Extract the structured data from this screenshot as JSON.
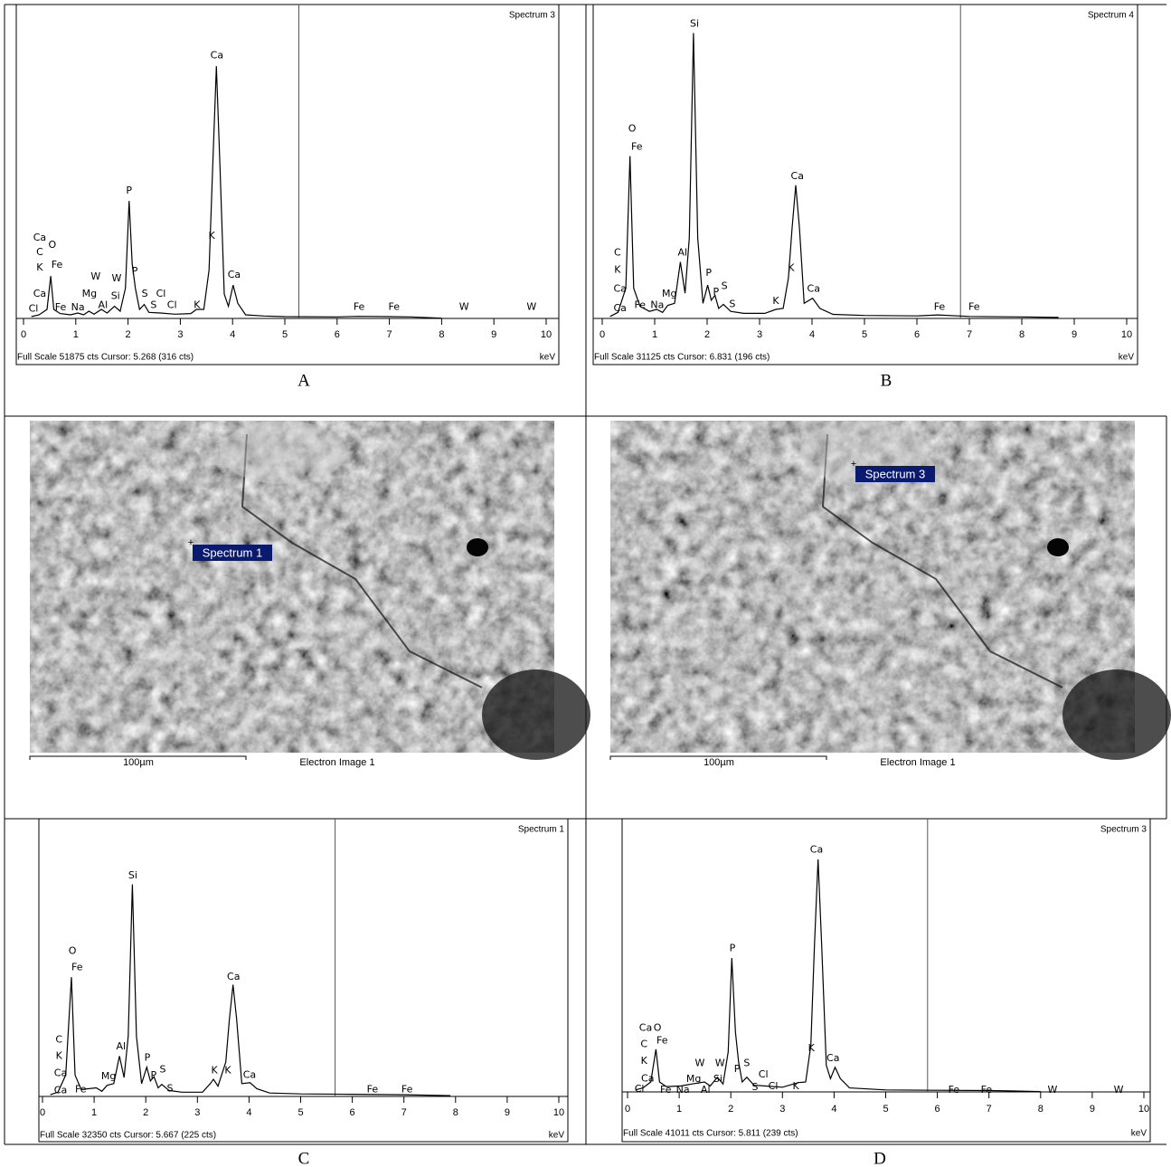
{
  "chart_data": [
    {
      "type": "line",
      "title": "Spectrum 3",
      "caption": "A",
      "x_label": "keV",
      "footer": "Full Scale 51875 cts Cursor: 5.268 (316 cts)",
      "cursor": 5.268,
      "color": "#000000",
      "xlim": [
        0,
        10
      ],
      "xticks": [
        0,
        1,
        2,
        3,
        4,
        5,
        6,
        7,
        8,
        9,
        10
      ],
      "ylim": [
        0,
        51875
      ],
      "x": [
        0.15,
        0.3,
        0.45,
        0.52,
        0.58,
        0.7,
        0.9,
        1.04,
        1.15,
        1.25,
        1.35,
        1.49,
        1.6,
        1.74,
        1.85,
        1.95,
        2.02,
        2.08,
        2.14,
        2.22,
        2.31,
        2.4,
        2.62,
        2.9,
        3.2,
        3.31,
        3.45,
        3.55,
        3.62,
        3.69,
        3.76,
        3.84,
        3.92,
        4.01,
        4.1,
        4.25,
        4.6,
        5,
        6,
        6.4,
        7,
        7.4,
        8
      ],
      "values": [
        300,
        600,
        1500,
        7000,
        1500,
        800,
        600,
        900,
        600,
        1200,
        700,
        1500,
        900,
        2000,
        1200,
        5000,
        19400,
        9000,
        5000,
        1500,
        2300,
        1000,
        900,
        700,
        800,
        1500,
        1500,
        8000,
        25000,
        41700,
        25000,
        4000,
        2000,
        5500,
        2500,
        600,
        400,
        300,
        250,
        350,
        300,
        250,
        50
      ],
      "annotations": [
        {
          "text": "Ca",
          "x": 0.31,
          "y": 13300
        },
        {
          "text": "C",
          "x": 0.31,
          "y": 10900
        },
        {
          "text": "K",
          "x": 0.31,
          "y": 8400
        },
        {
          "text": "Ca",
          "x": 0.31,
          "y": 4000
        },
        {
          "text": "Cl",
          "x": 0.19,
          "y": 1600
        },
        {
          "text": "O",
          "x": 0.55,
          "y": 12100
        },
        {
          "text": "Fe",
          "x": 0.64,
          "y": 8800
        },
        {
          "text": "Fe",
          "x": 0.71,
          "y": 1800
        },
        {
          "text": "Na",
          "x": 1.04,
          "y": 1800
        },
        {
          "text": "Mg",
          "x": 1.26,
          "y": 4000
        },
        {
          "text": "W",
          "x": 1.38,
          "y": 6900
        },
        {
          "text": "Al",
          "x": 1.52,
          "y": 2200
        },
        {
          "text": "Si",
          "x": 1.76,
          "y": 3700
        },
        {
          "text": "W",
          "x": 1.78,
          "y": 6600
        },
        {
          "text": "P",
          "x": 2.02,
          "y": 21100
        },
        {
          "text": "P",
          "x": 2.13,
          "y": 7800
        },
        {
          "text": "S",
          "x": 2.32,
          "y": 4000
        },
        {
          "text": "S",
          "x": 2.49,
          "y": 2200
        },
        {
          "text": "Cl",
          "x": 2.63,
          "y": 4000
        },
        {
          "text": "Cl",
          "x": 2.84,
          "y": 2200
        },
        {
          "text": "K",
          "x": 3.32,
          "y": 2200
        },
        {
          "text": "K",
          "x": 3.6,
          "y": 13600
        },
        {
          "text": "Ca",
          "x": 3.7,
          "y": 43400
        },
        {
          "text": "Ca",
          "x": 4.03,
          "y": 7200
        },
        {
          "text": "Fe",
          "x": 6.42,
          "y": 1900
        },
        {
          "text": "Fe",
          "x": 7.09,
          "y": 1900
        },
        {
          "text": "W",
          "x": 8.43,
          "y": 1900
        },
        {
          "text": "W",
          "x": 9.72,
          "y": 1900
        }
      ]
    },
    {
      "type": "line",
      "title": "Spectrum 4",
      "caption": "B",
      "x_label": "keV",
      "footer": "Full Scale 31125 cts Cursor: 6.831 (196 cts)",
      "cursor": 6.831,
      "color": "#000000",
      "xlim": [
        0,
        10
      ],
      "xticks": [
        0,
        1,
        2,
        3,
        4,
        5,
        6,
        7,
        8,
        9,
        10
      ],
      "ylim": [
        0,
        31125
      ],
      "x": [
        0.15,
        0.3,
        0.45,
        0.53,
        0.6,
        0.72,
        0.9,
        1.04,
        1.15,
        1.25,
        1.38,
        1.49,
        1.58,
        1.66,
        1.74,
        1.82,
        1.92,
        2.01,
        2.08,
        2.15,
        2.22,
        2.31,
        2.45,
        2.7,
        3.1,
        3.31,
        3.45,
        3.55,
        3.62,
        3.69,
        3.76,
        3.85,
        4.01,
        4.15,
        4.4,
        5,
        6,
        6.4,
        7,
        8,
        8.7
      ],
      "values": [
        200,
        600,
        3000,
        16100,
        3000,
        1200,
        700,
        900,
        600,
        1300,
        1500,
        5600,
        2500,
        8000,
        28300,
        8000,
        1500,
        3300,
        1800,
        2300,
        1000,
        1400,
        700,
        500,
        500,
        900,
        1000,
        4000,
        9000,
        13200,
        9000,
        1500,
        2000,
        1000,
        400,
        300,
        250,
        350,
        200,
        150,
        100
      ],
      "annotations": [
        {
          "text": "Si",
          "x": 1.76,
          "y": 29200
        },
        {
          "text": "O",
          "x": 0.57,
          "y": 18800
        },
        {
          "text": "Fe",
          "x": 0.66,
          "y": 17000
        },
        {
          "text": "C",
          "x": 0.29,
          "y": 6500
        },
        {
          "text": "K",
          "x": 0.29,
          "y": 4800
        },
        {
          "text": "Ca",
          "x": 0.34,
          "y": 2900
        },
        {
          "text": "Ca",
          "x": 0.34,
          "y": 1000
        },
        {
          "text": "Fe",
          "x": 0.72,
          "y": 1300
        },
        {
          "text": "Na",
          "x": 1.05,
          "y": 1300
        },
        {
          "text": "Mg",
          "x": 1.28,
          "y": 2400
        },
        {
          "text": "Al",
          "x": 1.53,
          "y": 6500
        },
        {
          "text": "P",
          "x": 2.03,
          "y": 4500
        },
        {
          "text": "S",
          "x": 2.33,
          "y": 3200
        },
        {
          "text": "P",
          "x": 2.17,
          "y": 2600
        },
        {
          "text": "S",
          "x": 2.48,
          "y": 1400
        },
        {
          "text": "K",
          "x": 3.31,
          "y": 1700
        },
        {
          "text": "K",
          "x": 3.6,
          "y": 5000
        },
        {
          "text": "Ca",
          "x": 3.72,
          "y": 14100
        },
        {
          "text": "Ca",
          "x": 4.03,
          "y": 2900
        },
        {
          "text": "Fe",
          "x": 6.43,
          "y": 1100
        },
        {
          "text": "Fe",
          "x": 7.09,
          "y": 1100
        }
      ]
    },
    {
      "type": "line",
      "title": "Spectrum 1",
      "caption": "C",
      "x_label": "keV",
      "footer": "Full Scale 32350 cts Cursor: 5.667 (225 cts)",
      "cursor": 5.667,
      "color": "#000000",
      "xlim": [
        0,
        10
      ],
      "xticks": [
        0,
        1,
        2,
        3,
        4,
        5,
        6,
        7,
        8,
        9,
        10
      ],
      "ylim": [
        0,
        32350
      ],
      "x": [
        0.15,
        0.3,
        0.45,
        0.56,
        0.63,
        0.75,
        1.04,
        1.15,
        1.25,
        1.38,
        1.49,
        1.58,
        1.66,
        1.74,
        1.82,
        1.92,
        2.02,
        2.09,
        2.16,
        2.24,
        2.31,
        2.45,
        2.7,
        3.1,
        3.25,
        3.31,
        3.4,
        3.55,
        3.62,
        3.69,
        3.76,
        3.86,
        4.02,
        4.15,
        4.4,
        5,
        6,
        7,
        7.9
      ],
      "values": [
        200,
        500,
        2500,
        13900,
        2500,
        800,
        1000,
        600,
        1300,
        1500,
        4700,
        2200,
        7000,
        24700,
        7000,
        1500,
        3400,
        1800,
        2300,
        1000,
        1400,
        700,
        500,
        500,
        1500,
        2000,
        1200,
        4000,
        9000,
        13000,
        9000,
        1500,
        1600,
        900,
        400,
        300,
        250,
        200,
        100
      ],
      "annotations": [
        {
          "text": "Si",
          "x": 1.75,
          "y": 25700
        },
        {
          "text": "O",
          "x": 0.58,
          "y": 16900
        },
        {
          "text": "Fe",
          "x": 0.67,
          "y": 15000
        },
        {
          "text": "C",
          "x": 0.32,
          "y": 6600
        },
        {
          "text": "K",
          "x": 0.32,
          "y": 4700
        },
        {
          "text": "Ca",
          "x": 0.35,
          "y": 2700
        },
        {
          "text": "Ca",
          "x": 0.35,
          "y": 700
        },
        {
          "text": "Fe",
          "x": 0.74,
          "y": 800
        },
        {
          "text": "Mg",
          "x": 1.28,
          "y": 2300
        },
        {
          "text": "Al",
          "x": 1.52,
          "y": 5800
        },
        {
          "text": "P",
          "x": 2.03,
          "y": 4500
        },
        {
          "text": "S",
          "x": 2.33,
          "y": 3100
        },
        {
          "text": "P",
          "x": 2.15,
          "y": 2400
        },
        {
          "text": "S",
          "x": 2.47,
          "y": 900
        },
        {
          "text": "K",
          "x": 3.33,
          "y": 3000
        },
        {
          "text": "K",
          "x": 3.59,
          "y": 3000
        },
        {
          "text": "Ca",
          "x": 3.7,
          "y": 13900
        },
        {
          "text": "Ca",
          "x": 4.01,
          "y": 2500
        },
        {
          "text": "Fe",
          "x": 6.39,
          "y": 800
        },
        {
          "text": "Fe",
          "x": 7.06,
          "y": 800
        }
      ]
    },
    {
      "type": "line",
      "title": "Spectrum 3",
      "caption": "D",
      "x_label": "keV",
      "footer": "Full Scale 41011 cts Cursor: 5.811 (239 cts)",
      "cursor": 5.811,
      "color": "#000000",
      "xlim": [
        0,
        10
      ],
      "xticks": [
        0,
        1,
        2,
        3,
        4,
        5,
        6,
        7,
        8,
        9,
        10
      ],
      "ylim": [
        0,
        41011
      ],
      "x": [
        0.15,
        0.3,
        0.45,
        0.55,
        0.62,
        0.75,
        1.04,
        1.25,
        1.49,
        1.6,
        1.74,
        1.85,
        1.95,
        2.02,
        2.09,
        2.15,
        2.22,
        2.31,
        2.45,
        2.65,
        3.0,
        3.31,
        3.45,
        3.55,
        3.62,
        3.69,
        3.76,
        3.85,
        3.93,
        4.02,
        4.12,
        4.3,
        5,
        6,
        7,
        7.4,
        8
      ],
      "values": [
        300,
        600,
        1500,
        6400,
        1500,
        800,
        900,
        1200,
        1500,
        900,
        2200,
        1200,
        6000,
        20100,
        9000,
        4500,
        1500,
        2200,
        1000,
        900,
        700,
        1400,
        1500,
        7000,
        22000,
        34900,
        22000,
        4000,
        2000,
        3700,
        2000,
        600,
        300,
        250,
        200,
        150,
        50
      ],
      "annotations": [
        {
          "text": "Ca",
          "x": 3.66,
          "y": 36300
        },
        {
          "text": "P",
          "x": 2.03,
          "y": 21500
        },
        {
          "text": "Ca",
          "x": 0.35,
          "y": 9600
        },
        {
          "text": "O",
          "x": 0.58,
          "y": 9600
        },
        {
          "text": "C",
          "x": 0.32,
          "y": 7100
        },
        {
          "text": "K",
          "x": 0.32,
          "y": 4600
        },
        {
          "text": "Fe",
          "x": 0.67,
          "y": 7700
        },
        {
          "text": "Ca",
          "x": 0.39,
          "y": 2000
        },
        {
          "text": "Cl",
          "x": 0.23,
          "y": 400
        },
        {
          "text": "Fe",
          "x": 0.74,
          "y": 300
        },
        {
          "text": "Na",
          "x": 1.07,
          "y": 300
        },
        {
          "text": "Mg",
          "x": 1.28,
          "y": 1900
        },
        {
          "text": "W",
          "x": 1.4,
          "y": 4300
        },
        {
          "text": "Al",
          "x": 1.51,
          "y": 300
        },
        {
          "text": "Si",
          "x": 1.75,
          "y": 1900
        },
        {
          "text": "W",
          "x": 1.79,
          "y": 4300
        },
        {
          "text": "P",
          "x": 2.12,
          "y": 3400
        },
        {
          "text": "S",
          "x": 2.31,
          "y": 4300
        },
        {
          "text": "S",
          "x": 2.47,
          "y": 700
        },
        {
          "text": "Cl",
          "x": 2.63,
          "y": 2600
        },
        {
          "text": "Cl",
          "x": 2.82,
          "y": 800
        },
        {
          "text": "K",
          "x": 3.26,
          "y": 800
        },
        {
          "text": "K",
          "x": 3.56,
          "y": 6500
        },
        {
          "text": "Ca",
          "x": 3.98,
          "y": 5000
        },
        {
          "text": "Fe",
          "x": 6.32,
          "y": 300
        },
        {
          "text": "Fe",
          "x": 6.95,
          "y": 300
        },
        {
          "text": "W",
          "x": 8.23,
          "y": 300
        },
        {
          "text": "W",
          "x": 9.51,
          "y": 300
        }
      ]
    }
  ],
  "images": [
    {
      "scale_bar": "100µm",
      "caption": "Electron Image 1",
      "marker": "Spectrum 1"
    },
    {
      "scale_bar": "100µm",
      "caption": "Electron Image 1",
      "marker": "Spectrum 3"
    }
  ]
}
